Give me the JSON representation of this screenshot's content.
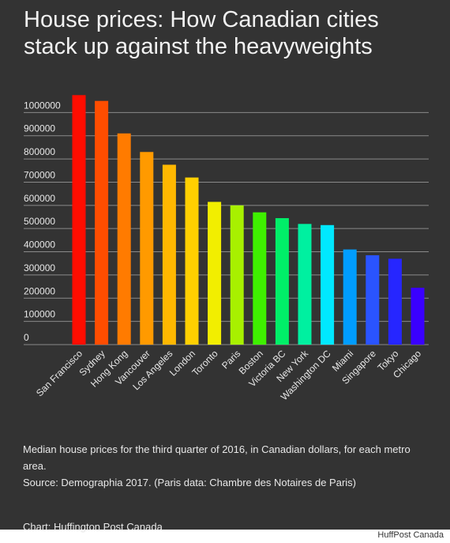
{
  "page": {
    "title": "House prices: How Canadian cities stack up against the heavyweights",
    "description": "Median house prices for the third quarter of 2016, in Canadian dollars, for each metro area.",
    "source": "Source: Demographia 2017. (Paris data: Chambre des Notaires de Paris)",
    "credit": "Chart: Huffington Post Canada",
    "watermark": "HuffPost Canada"
  },
  "colors": {
    "background": "#333333",
    "text": "#e8e8e8",
    "grid": "#8a8a8a"
  },
  "chart_data": {
    "type": "bar",
    "title": "",
    "xlabel": "",
    "ylabel": "",
    "grid": true,
    "ylim": [
      0,
      1100000
    ],
    "yticks": [
      0,
      100000,
      200000,
      300000,
      400000,
      500000,
      600000,
      700000,
      800000,
      900000,
      1000000
    ],
    "categories": [
      "San Francisco",
      "Sydney",
      "Hong Kong",
      "Vancouver",
      "Los Angeles",
      "London",
      "Toronto",
      "Paris",
      "Boston",
      "Victoria BC",
      "New York",
      "Washington DC",
      "Miami",
      "Singapore",
      "Tokyo",
      "Chicago"
    ],
    "values": [
      1075000,
      1050000,
      910000,
      830000,
      775000,
      720000,
      615000,
      600000,
      570000,
      545000,
      520000,
      515000,
      410000,
      385000,
      370000,
      245000
    ],
    "bar_colors": [
      "#ff0d00",
      "#ff4d00",
      "#ff7b00",
      "#ff9a00",
      "#ffb800",
      "#ffd000",
      "#f2ee00",
      "#a8f000",
      "#3ff000",
      "#00ef68",
      "#00f0a0",
      "#00e8ff",
      "#009dff",
      "#2a54ff",
      "#2626ff",
      "#3a00ff"
    ]
  }
}
